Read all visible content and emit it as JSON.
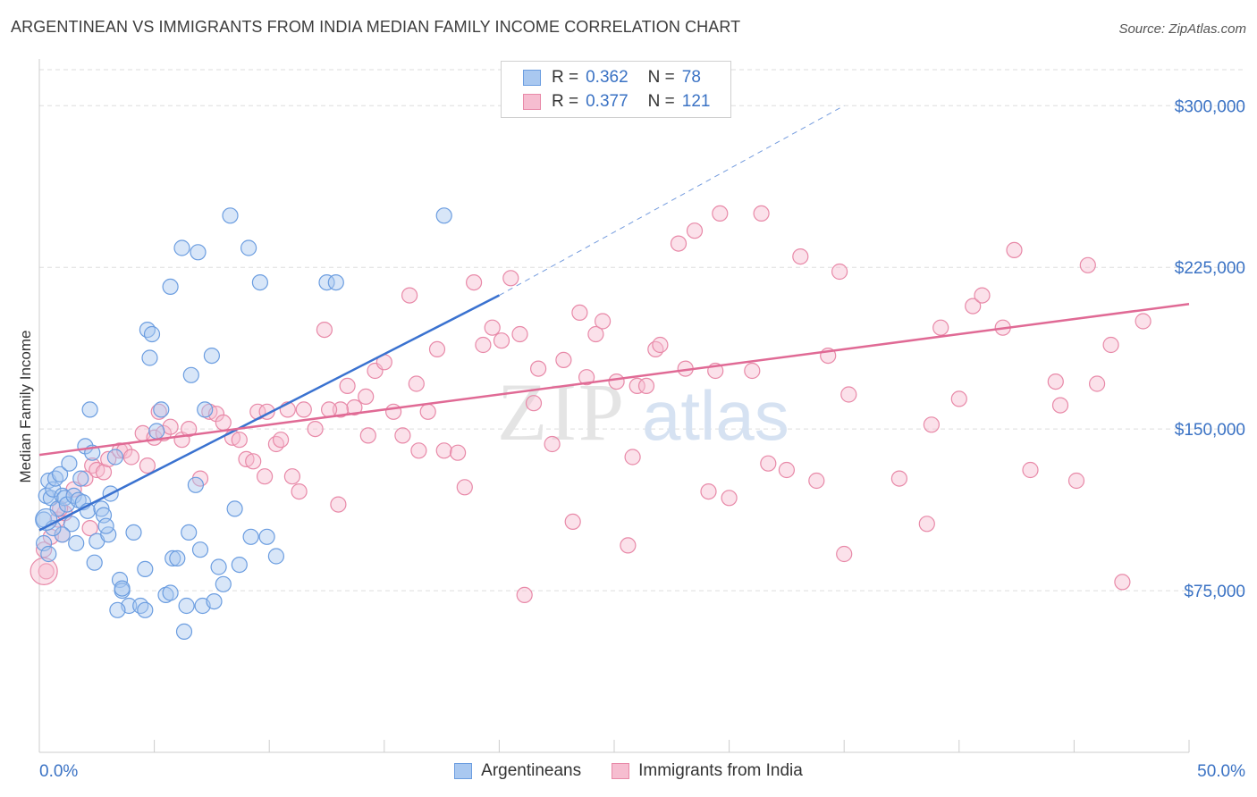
{
  "title": "ARGENTINEAN VS IMMIGRANTS FROM INDIA MEDIAN FAMILY INCOME CORRELATION CHART",
  "source": "Source: ZipAtlas.com",
  "watermark": {
    "zip": "ZIP",
    "atlas": "atlas"
  },
  "legend": {
    "r_label": "R =",
    "n_label": "N =",
    "entries": [
      {
        "r": "0.362",
        "n": "78"
      },
      {
        "r": "0.377",
        "n": "121"
      }
    ]
  },
  "colors": {
    "blue_fill": "#a9c8f0",
    "blue_stroke": "#6b9de0",
    "blue_line": "#3a72d0",
    "pink_fill": "#f6bdd0",
    "pink_stroke": "#e889a8",
    "pink_line": "#e06a95",
    "axis_text": "#3a72c4",
    "grid": "#dddddd"
  },
  "chart_data": {
    "type": "scatter",
    "xlabel": "",
    "ylabel": "Median Family Income",
    "x_tick_labels": [
      "0.0%",
      "50.0%"
    ],
    "y_tick_labels": [
      "$75,000",
      "$150,000",
      "$225,000",
      "$300,000"
    ],
    "xlim": [
      0,
      50
    ],
    "ylim": [
      0,
      320000
    ],
    "y_gridlines": [
      75000,
      150000,
      225000,
      300000
    ],
    "series": [
      {
        "name": "Argentineans",
        "color": "blue",
        "trend": {
          "x1": 0,
          "y1": 103000,
          "x2": 20,
          "y2": 212000,
          "dash_to_x": 35,
          "dash_to_y": 300000
        },
        "points": [
          [
            0.2,
            108000
          ],
          [
            0.2,
            97000
          ],
          [
            0.3,
            119000
          ],
          [
            0.4,
            126000
          ],
          [
            0.5,
            118000
          ],
          [
            0.6,
            122000
          ],
          [
            0.7,
            127000
          ],
          [
            0.8,
            113000
          ],
          [
            0.9,
            129000
          ],
          [
            1.0,
            119000
          ],
          [
            1.1,
            118000
          ],
          [
            1.2,
            115000
          ],
          [
            1.3,
            134000
          ],
          [
            1.4,
            106000
          ],
          [
            1.5,
            119000
          ],
          [
            1.6,
            97000
          ],
          [
            1.7,
            117000
          ],
          [
            1.8,
            127000
          ],
          [
            1.9,
            116000
          ],
          [
            2.0,
            142000
          ],
          [
            2.1,
            112000
          ],
          [
            2.2,
            159000
          ],
          [
            2.3,
            139000
          ],
          [
            2.4,
            88000
          ],
          [
            2.5,
            98000
          ],
          [
            2.7,
            113000
          ],
          [
            2.8,
            110000
          ],
          [
            3.1,
            120000
          ],
          [
            3.3,
            137000
          ],
          [
            3.5,
            80000
          ],
          [
            3.6,
            75000
          ],
          [
            3.9,
            68000
          ],
          [
            4.1,
            102000
          ],
          [
            4.4,
            68000
          ],
          [
            4.6,
            85000
          ],
          [
            4.7,
            196000
          ],
          [
            4.8,
            183000
          ],
          [
            4.9,
            194000
          ],
          [
            5.1,
            149000
          ],
          [
            5.3,
            159000
          ],
          [
            5.5,
            73000
          ],
          [
            5.7,
            216000
          ],
          [
            5.8,
            90000
          ],
          [
            6.0,
            90000
          ],
          [
            6.2,
            234000
          ],
          [
            6.4,
            68000
          ],
          [
            6.5,
            102000
          ],
          [
            6.6,
            175000
          ],
          [
            6.8,
            124000
          ],
          [
            6.9,
            232000
          ],
          [
            7.0,
            94000
          ],
          [
            7.1,
            68000
          ],
          [
            7.2,
            159000
          ],
          [
            7.5,
            184000
          ],
          [
            7.6,
            70000
          ],
          [
            7.8,
            86000
          ],
          [
            8.0,
            78000
          ],
          [
            8.3,
            249000
          ],
          [
            8.5,
            113000
          ],
          [
            8.7,
            87000
          ],
          [
            9.1,
            234000
          ],
          [
            9.2,
            100000
          ],
          [
            9.6,
            218000
          ],
          [
            9.9,
            100000
          ],
          [
            10.3,
            91000
          ],
          [
            12.5,
            218000
          ],
          [
            12.9,
            218000
          ],
          [
            17.6,
            249000
          ],
          [
            3.0,
            101000
          ],
          [
            2.9,
            105000
          ],
          [
            1.0,
            101000
          ],
          [
            0.4,
            92000
          ],
          [
            0.6,
            104000
          ],
          [
            3.6,
            76000
          ],
          [
            5.7,
            74000
          ],
          [
            4.6,
            66000
          ],
          [
            3.4,
            66000
          ],
          [
            6.3,
            56000
          ]
        ]
      },
      {
        "name": "Immigrants from India",
        "color": "pink",
        "trend": {
          "x1": 0,
          "y1": 138000,
          "x2": 50,
          "y2": 208000
        },
        "points": [
          [
            0.2,
            94000
          ],
          [
            0.3,
            84000
          ],
          [
            0.5,
            100000
          ],
          [
            0.8,
            108000
          ],
          [
            1.0,
            101000
          ],
          [
            1.5,
            122000
          ],
          [
            2.0,
            127000
          ],
          [
            2.3,
            133000
          ],
          [
            2.5,
            131000
          ],
          [
            2.8,
            130000
          ],
          [
            3.0,
            136000
          ],
          [
            3.5,
            140000
          ],
          [
            3.7,
            140000
          ],
          [
            4.0,
            137000
          ],
          [
            4.5,
            148000
          ],
          [
            4.7,
            133000
          ],
          [
            5.0,
            146000
          ],
          [
            5.2,
            158000
          ],
          [
            5.4,
            148000
          ],
          [
            5.7,
            151000
          ],
          [
            6.2,
            145000
          ],
          [
            6.5,
            150000
          ],
          [
            7.0,
            127000
          ],
          [
            7.4,
            158000
          ],
          [
            7.7,
            157000
          ],
          [
            8.0,
            153000
          ],
          [
            8.4,
            146000
          ],
          [
            8.7,
            145000
          ],
          [
            9.0,
            136000
          ],
          [
            9.3,
            135000
          ],
          [
            9.5,
            158000
          ],
          [
            9.9,
            158000
          ],
          [
            10.3,
            143000
          ],
          [
            10.5,
            145000
          ],
          [
            11.0,
            128000
          ],
          [
            11.3,
            121000
          ],
          [
            12.0,
            150000
          ],
          [
            12.4,
            196000
          ],
          [
            13.0,
            115000
          ],
          [
            13.4,
            170000
          ],
          [
            13.7,
            160000
          ],
          [
            14.2,
            165000
          ],
          [
            14.6,
            177000
          ],
          [
            15.0,
            181000
          ],
          [
            15.4,
            158000
          ],
          [
            15.8,
            147000
          ],
          [
            16.1,
            212000
          ],
          [
            16.4,
            171000
          ],
          [
            16.9,
            158000
          ],
          [
            17.3,
            187000
          ],
          [
            17.6,
            140000
          ],
          [
            18.2,
            139000
          ],
          [
            18.5,
            123000
          ],
          [
            18.9,
            218000
          ],
          [
            19.3,
            189000
          ],
          [
            19.7,
            197000
          ],
          [
            20.1,
            191000
          ],
          [
            20.5,
            220000
          ],
          [
            20.9,
            194000
          ],
          [
            21.5,
            162000
          ],
          [
            21.7,
            178000
          ],
          [
            22.3,
            143000
          ],
          [
            22.8,
            182000
          ],
          [
            23.2,
            107000
          ],
          [
            23.5,
            204000
          ],
          [
            23.8,
            174000
          ],
          [
            24.2,
            194000
          ],
          [
            24.5,
            200000
          ],
          [
            25.1,
            172000
          ],
          [
            25.6,
            96000
          ],
          [
            25.8,
            137000
          ],
          [
            26.0,
            170000
          ],
          [
            26.4,
            170000
          ],
          [
            26.8,
            187000
          ],
          [
            27.0,
            189000
          ],
          [
            27.8,
            236000
          ],
          [
            28.1,
            178000
          ],
          [
            28.5,
            242000
          ],
          [
            29.1,
            121000
          ],
          [
            29.4,
            177000
          ],
          [
            29.6,
            250000
          ],
          [
            30.0,
            118000
          ],
          [
            31.0,
            177000
          ],
          [
            31.4,
            250000
          ],
          [
            31.7,
            134000
          ],
          [
            32.5,
            131000
          ],
          [
            33.1,
            230000
          ],
          [
            33.8,
            126000
          ],
          [
            34.3,
            184000
          ],
          [
            34.8,
            223000
          ],
          [
            35.2,
            166000
          ],
          [
            35.0,
            92000
          ],
          [
            37.4,
            127000
          ],
          [
            38.6,
            106000
          ],
          [
            38.8,
            152000
          ],
          [
            39.2,
            197000
          ],
          [
            40.0,
            164000
          ],
          [
            40.6,
            207000
          ],
          [
            41.0,
            212000
          ],
          [
            41.9,
            197000
          ],
          [
            42.4,
            233000
          ],
          [
            43.1,
            131000
          ],
          [
            44.2,
            172000
          ],
          [
            44.4,
            161000
          ],
          [
            45.1,
            126000
          ],
          [
            45.6,
            226000
          ],
          [
            46.0,
            171000
          ],
          [
            46.6,
            189000
          ],
          [
            47.1,
            79000
          ],
          [
            48.0,
            200000
          ],
          [
            16.5,
            140000
          ],
          [
            14.3,
            147000
          ],
          [
            13.1,
            159000
          ],
          [
            12.6,
            159000
          ],
          [
            11.5,
            159000
          ],
          [
            10.8,
            159000
          ],
          [
            9.8,
            128000
          ],
          [
            21.1,
            73000
          ],
          [
            2.2,
            104000
          ],
          [
            1.1,
            111000
          ],
          [
            0.9,
            113000
          ]
        ]
      }
    ]
  },
  "bottom_legend": [
    "Argentineans",
    "Immigrants from India"
  ]
}
